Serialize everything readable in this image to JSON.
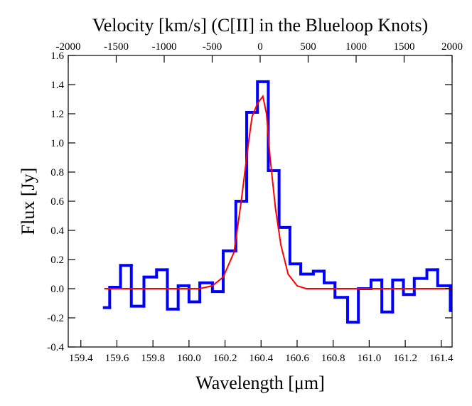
{
  "chart_data": {
    "type": "step",
    "title": "Velocity [km/s] (C[II] in the Blueloop Knots)",
    "xlabel": "Wavelength [μm]",
    "ylabel": "Flux [Jy]",
    "xlim": [
      159.33,
      161.46
    ],
    "xticks": [
      159.4,
      159.6,
      159.8,
      {
        "value": 160,
        "label": "160.0"
      },
      160.2,
      160.4,
      160.6,
      160.8,
      {
        "value": 161,
        "label": "161.0"
      },
      161.2,
      161.4
    ],
    "x2lim": [
      -2000,
      2000
    ],
    "x2ticks": [
      -2000,
      -1500,
      -1000,
      -500,
      0,
      500,
      1000,
      1500,
      2000
    ],
    "ylim": [
      -0.4,
      1.6
    ],
    "yticks": [
      -0.4,
      -0.2,
      {
        "value": 0,
        "label": "0.0"
      },
      0.2,
      0.4,
      0.6,
      0.8,
      {
        "value": 1,
        "label": "1.0"
      },
      1.2,
      1.4,
      1.6
    ],
    "series": [
      {
        "color": "#0000ff",
        "drawstyle": "steps",
        "bins": [
          159.53,
          159.56,
          159.62,
          159.68,
          159.75,
          159.82,
          159.88,
          159.94,
          160.0,
          160.06,
          160.13,
          160.19,
          160.26,
          160.32,
          160.38,
          160.44,
          160.5,
          160.56,
          160.62,
          160.69,
          160.75,
          160.81,
          160.88,
          160.94,
          161.01,
          161.07,
          161.13,
          161.19,
          161.25,
          161.32,
          161.38,
          161.45,
          161.46
        ],
        "values": [
          -0.13,
          0.01,
          0.16,
          -0.12,
          0.08,
          0.13,
          -0.14,
          0.02,
          -0.09,
          0.04,
          -0.02,
          0.26,
          0.6,
          1.21,
          1.42,
          0.81,
          0.42,
          0.17,
          0.1,
          0.12,
          0.04,
          -0.06,
          -0.23,
          0.0,
          0.06,
          -0.16,
          0.06,
          -0.04,
          0.07,
          0.13,
          0.02,
          -0.15
        ]
      },
      {
        "color": "#ff0000",
        "drawstyle": "line",
        "x": [
          159.53,
          160.06,
          160.13,
          160.19,
          160.25,
          160.29,
          160.33,
          160.35,
          160.38,
          160.41,
          160.43,
          160.45,
          160.48,
          160.51,
          160.55,
          160.6,
          160.65,
          161.46
        ],
        "values": [
          0,
          0,
          0.02,
          0.08,
          0.25,
          0.6,
          1.0,
          1.18,
          1.27,
          1.32,
          1.2,
          0.9,
          0.55,
          0.3,
          0.1,
          0.02,
          0,
          0
        ]
      }
    ]
  }
}
